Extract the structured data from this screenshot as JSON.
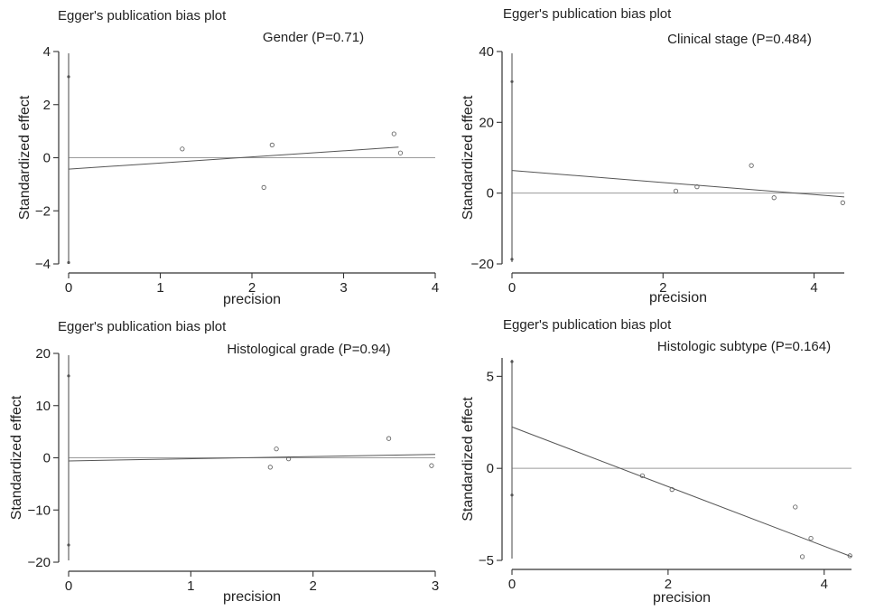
{
  "chart_data": [
    {
      "type": "scatter",
      "title": "Egger's publication bias plot",
      "subtitle": "Gender (P=0.71)",
      "xlabel": "precision",
      "ylabel": "Standardized effect",
      "xlim": [
        0,
        4
      ],
      "ylim": [
        -4,
        4
      ],
      "xticks": [
        0,
        1,
        2,
        3,
        4
      ],
      "yticks": [
        -4,
        -2,
        0,
        2,
        4
      ],
      "points": [
        {
          "x": 1.24,
          "y": 0.33
        },
        {
          "x": 2.22,
          "y": 0.48
        },
        {
          "x": 2.13,
          "y": -1.12
        },
        {
          "x": 3.55,
          "y": 0.9
        },
        {
          "x": 3.62,
          "y": 0.18
        }
      ],
      "fit_line": {
        "intercept": -0.43,
        "slope": 0.23,
        "x_range": [
          0,
          3.6
        ]
      },
      "zero_line": 0,
      "intercept_ci": [
        -3.95,
        3.05
      ]
    },
    {
      "type": "scatter",
      "title": "Egger's publication bias plot",
      "subtitle": "Clinical stage (P=0.484)",
      "xlabel": "precision",
      "ylabel": "Standardized effect",
      "xlim": [
        0,
        4.4
      ],
      "ylim": [
        -20,
        40
      ],
      "xticks": [
        0,
        2,
        4
      ],
      "yticks": [
        -20,
        0,
        20,
        40
      ],
      "points": [
        {
          "x": 2.17,
          "y": 0.6
        },
        {
          "x": 2.45,
          "y": 1.8
        },
        {
          "x": 3.17,
          "y": 7.8
        },
        {
          "x": 3.47,
          "y": -1.3
        },
        {
          "x": 4.38,
          "y": -2.7
        }
      ],
      "fit_line": {
        "intercept": 6.4,
        "slope": -1.7,
        "x_range": [
          0,
          4.4
        ]
      },
      "zero_line": 0,
      "intercept_ci": [
        -18.7,
        31.5
      ]
    },
    {
      "type": "scatter",
      "title": "Egger's publication bias plot",
      "subtitle": "Histological grade (P=0.94)",
      "xlabel": "precision",
      "ylabel": "Standardized effect",
      "xlim": [
        0,
        3
      ],
      "ylim": [
        -20,
        20
      ],
      "xticks": [
        0,
        1,
        2,
        3
      ],
      "yticks": [
        -20,
        -10,
        0,
        10,
        20
      ],
      "points": [
        {
          "x": 1.65,
          "y": -1.8
        },
        {
          "x": 1.7,
          "y": 1.7
        },
        {
          "x": 1.8,
          "y": -0.2
        },
        {
          "x": 2.62,
          "y": 3.7
        },
        {
          "x": 2.97,
          "y": -1.5
        }
      ],
      "fit_line": {
        "intercept": -0.6,
        "slope": 0.42,
        "x_range": [
          0,
          3
        ]
      },
      "zero_line": 0,
      "intercept_ci": [
        -16.7,
        15.7
      ]
    },
    {
      "type": "scatter",
      "title": "Egger's publication bias plot",
      "subtitle": "Histologic subtype (P=0.164)",
      "xlabel": "precision",
      "ylabel": "Standardized effect",
      "xlim": [
        0,
        4.35
      ],
      "ylim": [
        -5,
        6
      ],
      "xticks": [
        0,
        2,
        4
      ],
      "yticks": [
        -5,
        0,
        5
      ],
      "points": [
        {
          "x": 1.67,
          "y": -0.4
        },
        {
          "x": 2.05,
          "y": -1.15
        },
        {
          "x": 3.63,
          "y": -2.1
        },
        {
          "x": 3.72,
          "y": -4.8
        },
        {
          "x": 3.83,
          "y": -3.8
        },
        {
          "x": 4.33,
          "y": -4.75
        }
      ],
      "fit_line": {
        "intercept": 2.25,
        "slope": -1.62,
        "x_range": [
          0,
          4.35
        ]
      },
      "zero_line": 0,
      "intercept_ci": [
        -1.45,
        5.8
      ]
    }
  ]
}
